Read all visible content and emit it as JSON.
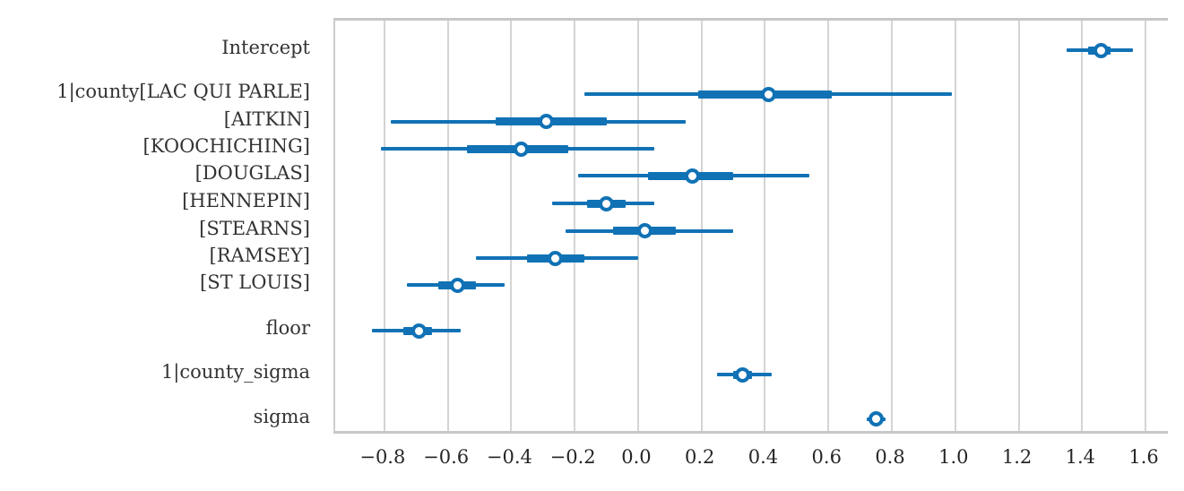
{
  "chart_data": {
    "type": "forest",
    "title": "",
    "xlabel": "",
    "ylabel": "",
    "xlim": [
      -0.955,
      1.676
    ],
    "grid": "vertical",
    "legend": "none",
    "x_ticks": [
      -0.8,
      -0.6,
      -0.4,
      -0.2,
      0.0,
      0.2,
      0.4,
      0.6,
      0.8,
      1.0,
      1.2,
      1.4,
      1.6
    ],
    "x_tick_labels": [
      "−0.8",
      "−0.6",
      "−0.4",
      "−0.2",
      "0.0",
      "0.2",
      "0.4",
      "0.6",
      "0.8",
      "1.0",
      "1.2",
      "1.4",
      "1.6"
    ],
    "rows": [
      {
        "label": "Intercept",
        "point": 1.46,
        "thick": [
          1.42,
          1.49
        ],
        "thin": [
          1.35,
          1.56
        ]
      },
      {
        "label": "1|county[LAC QUI PARLE]",
        "point": 0.41,
        "thick": [
          0.19,
          0.61
        ],
        "thin": [
          -0.17,
          0.99
        ]
      },
      {
        "label": "[AITKIN]",
        "point": -0.29,
        "thick": [
          -0.45,
          -0.1
        ],
        "thin": [
          -0.78,
          0.15
        ]
      },
      {
        "label": "[KOOCHICHING]",
        "point": -0.37,
        "thick": [
          -0.54,
          -0.22
        ],
        "thin": [
          -0.81,
          0.05
        ]
      },
      {
        "label": "[DOUGLAS]",
        "point": 0.17,
        "thick": [
          0.03,
          0.3
        ],
        "thin": [
          -0.19,
          0.54
        ]
      },
      {
        "label": "[HENNEPIN]",
        "point": -0.1,
        "thick": [
          -0.16,
          -0.04
        ],
        "thin": [
          -0.27,
          0.05
        ]
      },
      {
        "label": "[STEARNS]",
        "point": 0.02,
        "thick": [
          -0.08,
          0.12
        ],
        "thin": [
          -0.23,
          0.3
        ]
      },
      {
        "label": "[RAMSEY]",
        "point": -0.26,
        "thick": [
          -0.35,
          -0.17
        ],
        "thin": [
          -0.51,
          0.0
        ]
      },
      {
        "label": "[ST LOUIS]",
        "point": -0.57,
        "thick": [
          -0.63,
          -0.51
        ],
        "thin": [
          -0.73,
          -0.42
        ]
      },
      {
        "label": "floor",
        "point": -0.69,
        "thick": [
          -0.74,
          -0.65
        ],
        "thin": [
          -0.84,
          -0.56
        ]
      },
      {
        "label": "1|county_sigma",
        "point": 0.33,
        "thick": [
          0.3,
          0.36
        ],
        "thin": [
          0.25,
          0.42
        ]
      },
      {
        "label": "sigma",
        "point": 0.75,
        "thick": [
          0.73,
          0.77
        ],
        "thin": [
          0.72,
          0.78
        ]
      }
    ],
    "colors": {
      "interval": "#1072b5",
      "marker_fill": "#ffffff",
      "grid": "#d4d4d4",
      "spine": "#c7c7c7",
      "label": "#333333",
      "tick_label": "#262626",
      "background": "#ffffff"
    }
  }
}
